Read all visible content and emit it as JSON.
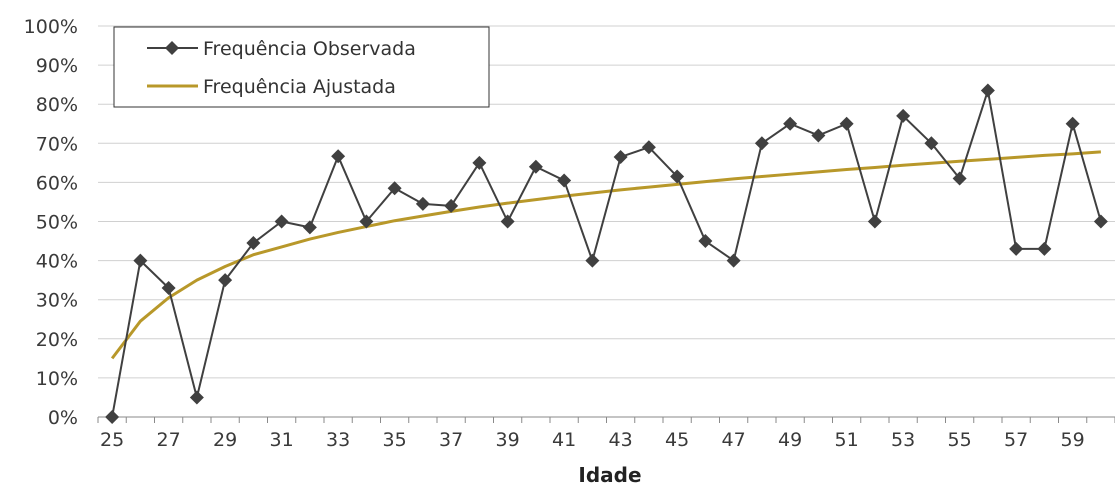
{
  "chart_data": {
    "type": "line",
    "title": "",
    "xlabel": "Idade",
    "ylabel": "",
    "x": [
      25,
      26,
      27,
      28,
      29,
      30,
      31,
      32,
      33,
      34,
      35,
      36,
      37,
      38,
      39,
      40,
      41,
      42,
      43,
      44,
      45,
      46,
      47,
      48,
      49,
      50,
      51,
      52,
      53,
      54,
      55,
      56,
      57,
      58,
      59,
      60
    ],
    "xticks": [
      25,
      27,
      29,
      31,
      33,
      35,
      37,
      39,
      41,
      43,
      45,
      47,
      49,
      51,
      53,
      55,
      57,
      59
    ],
    "ylim": [
      0,
      100
    ],
    "yticks": [
      "0%",
      "10%",
      "20%",
      "30%",
      "40%",
      "50%",
      "60%",
      "70%",
      "80%",
      "90%",
      "100%"
    ],
    "grid": "horizontal",
    "legend": "top-left",
    "series": [
      {
        "name": "Frequência Observada",
        "color": "#404040",
        "marker": "diamond",
        "values": [
          0,
          40,
          33,
          5,
          35,
          44.5,
          50,
          48.5,
          66.7,
          50,
          58.5,
          54.5,
          54,
          65,
          50,
          64,
          60.5,
          40,
          66.5,
          69,
          61.5,
          45,
          40,
          70,
          75,
          72,
          75,
          50,
          77,
          70,
          61,
          83.5,
          43,
          43,
          75,
          50
        ]
      },
      {
        "name": "Frequência Ajustada",
        "color": "#b8982a",
        "marker": "none",
        "values": [
          15,
          24.5,
          30.5,
          35,
          38.5,
          41.5,
          43.5,
          45.5,
          47.2,
          48.7,
          50.2,
          51.4,
          52.6,
          53.7,
          54.7,
          55.6,
          56.5,
          57.3,
          58.1,
          58.8,
          59.5,
          60.2,
          60.9,
          61.5,
          62.1,
          62.7,
          63.3,
          63.8,
          64.4,
          64.9,
          65.4,
          65.9,
          66.4,
          66.9,
          67.3,
          67.8
        ]
      }
    ]
  }
}
